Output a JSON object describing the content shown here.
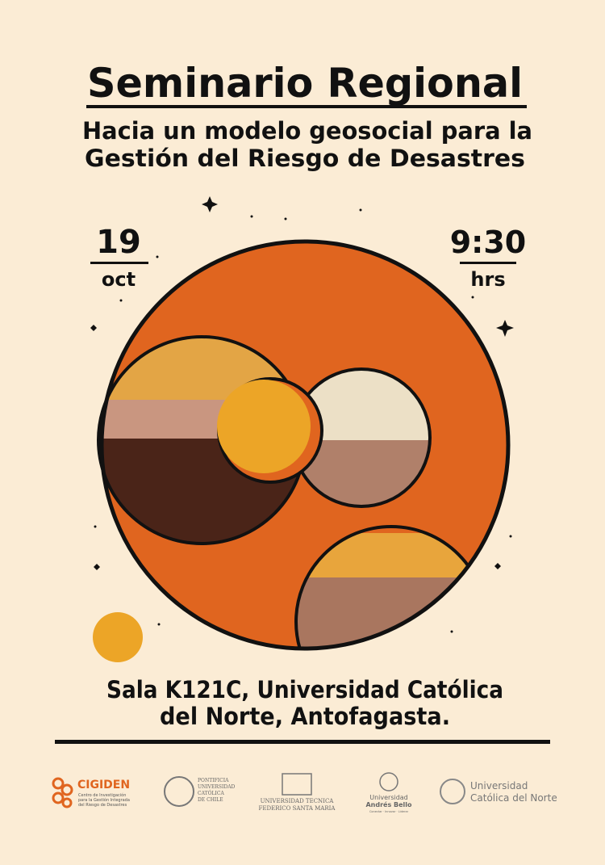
{
  "header": {
    "title": "Seminario Regional",
    "subtitle_lines": [
      "Hacia un modelo geosocial para la",
      "Gestión del Riesgo de Desastres"
    ]
  },
  "date": {
    "day": "19",
    "month": "oct"
  },
  "time": {
    "hour": "9:30",
    "unit": "hrs"
  },
  "venue": {
    "lines": [
      "Sala K121C, Universidad Católica",
      "del Norte, Antofagasta."
    ]
  },
  "logos": {
    "cigiden": {
      "name": "CIGIDEN",
      "description": [
        "Centro de Investigación",
        "para la Gestión Integrada",
        "del Riesgo de Desastres"
      ]
    },
    "puc": {
      "lines": [
        "PONTIFICIA",
        "UNIVERSIDAD",
        "CATÓLICA",
        "DE CHILE"
      ]
    },
    "utfsm": {
      "lines": [
        "UNIVERSIDAD TECNICA",
        "FEDERICO SANTA MARIA"
      ]
    },
    "unab": {
      "lines": [
        "Universidad",
        "Andrés Bello"
      ],
      "tagline": "Conectar · Innovar · Liderar"
    },
    "ucn": {
      "lines": [
        "Universidad",
        "Católica del Norte"
      ]
    }
  }
}
